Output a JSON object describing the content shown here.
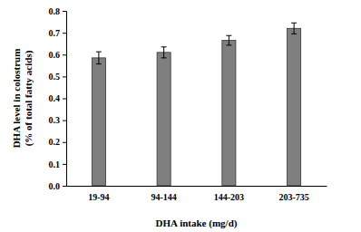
{
  "chart_data": {
    "type": "bar",
    "x_label": "DHA intake (mg/d)",
    "y_label": [
      "DHA level in colostrum",
      "(% of total fatty acids)"
    ],
    "categories": [
      "19-94",
      "94-144",
      "144-203",
      "203-735"
    ],
    "values": [
      0.585,
      0.61,
      0.665,
      0.72
    ],
    "errors": [
      0.028,
      0.025,
      0.022,
      0.025
    ],
    "color": "#7f7f7f",
    "ylim": [
      0,
      0.8
    ],
    "yticks": [
      {
        "value": 0,
        "label": "0.0"
      },
      0.1,
      0.2,
      0.3,
      0.4,
      0.5,
      0.6,
      0.7,
      0.8
    ],
    "grid": false
  }
}
